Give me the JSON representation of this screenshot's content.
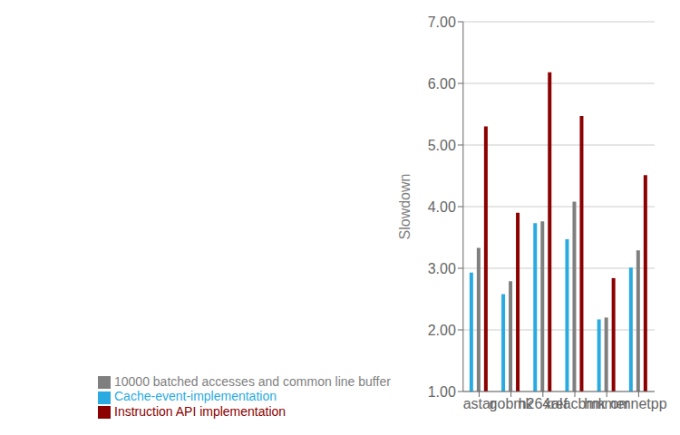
{
  "chart_data": {
    "type": "bar",
    "ylabel": "Slowdown",
    "categories": [
      "astar",
      "gobmk",
      "h264ref",
      "xalacbmk",
      "hmmer",
      "omnetpp"
    ],
    "series": [
      {
        "name": "Cache-event-implementation",
        "color": "#29ABE2",
        "values": [
          2.93,
          2.58,
          3.73,
          3.47,
          2.17,
          3.01
        ]
      },
      {
        "name": "10000 batched accesses and common line buffer",
        "color": "#7F7F7F",
        "values": [
          3.33,
          2.79,
          3.76,
          4.08,
          2.2,
          3.29
        ]
      },
      {
        "name": "Instruction API implementation",
        "color": "#8B0000",
        "values": [
          5.3,
          3.9,
          6.18,
          5.47,
          2.84,
          4.51
        ]
      }
    ],
    "ylim": [
      1.0,
      7.0
    ],
    "yticks": [
      {
        "value": 1,
        "label": "1.00"
      },
      {
        "value": 2,
        "label": "2.00"
      },
      {
        "value": 3,
        "label": "3.00"
      },
      {
        "value": 4,
        "label": "4.00"
      },
      {
        "value": 5,
        "label": "5.00"
      },
      {
        "value": 6,
        "label": "6.00"
      },
      {
        "value": 7,
        "label": "7.00"
      }
    ],
    "grid": true,
    "legend": "bottom"
  }
}
